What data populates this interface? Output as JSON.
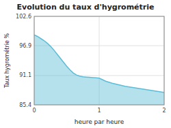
{
  "chart_data": {
    "type": "area",
    "title": "Evolution du taux d'hygrométrie",
    "xlabel": "heure par heure",
    "ylabel": "Taux hygrométrie %",
    "x": [
      0.0,
      0.05,
      0.1,
      0.15,
      0.2,
      0.25,
      0.3,
      0.35,
      0.4,
      0.45,
      0.5,
      0.55,
      0.6,
      0.65,
      0.7,
      0.75,
      0.8,
      0.85,
      0.9,
      0.95,
      1.0,
      1.05,
      1.1,
      1.2,
      1.3,
      1.4,
      1.5,
      1.6,
      1.7,
      1.8,
      1.9,
      2.0
    ],
    "values": [
      99.0,
      98.7,
      98.3,
      97.9,
      97.4,
      96.8,
      96.1,
      95.3,
      94.5,
      93.7,
      92.9,
      92.2,
      91.6,
      91.2,
      91.0,
      90.85,
      90.8,
      90.75,
      90.7,
      90.65,
      90.6,
      90.3,
      90.0,
      89.6,
      89.3,
      89.0,
      88.8,
      88.6,
      88.4,
      88.2,
      88.0,
      87.8
    ],
    "color": "#5bbcd6",
    "xlim": [
      0,
      2
    ],
    "ylim": [
      85.4,
      102.6
    ],
    "xticks": [
      0,
      1,
      2
    ],
    "yticks": [
      85.4,
      91.1,
      96.9,
      102.6
    ],
    "grid": true
  }
}
